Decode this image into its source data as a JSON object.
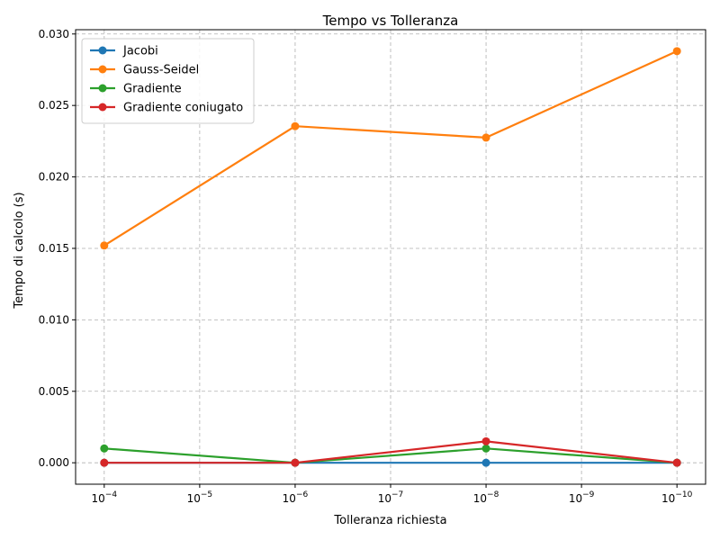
{
  "chart_data": {
    "type": "line",
    "title": "Tempo vs Tolleranza",
    "xlabel": "Tolleranza richiesta",
    "ylabel": "Tempo di calcolo (s)",
    "x_scale": "log",
    "x_reversed": true,
    "x": [
      0.0001,
      1e-06,
      1e-08,
      1e-10
    ],
    "x_ticks": [
      {
        "value": 0.0001,
        "base": "10",
        "exp": "−4"
      },
      {
        "value": 1e-05,
        "base": "10",
        "exp": "−5"
      },
      {
        "value": 1e-06,
        "base": "10",
        "exp": "−6"
      },
      {
        "value": 1e-07,
        "base": "10",
        "exp": "−7"
      },
      {
        "value": 1e-08,
        "base": "10",
        "exp": "−8"
      },
      {
        "value": 1e-09,
        "base": "10",
        "exp": "−9"
      },
      {
        "value": 1e-10,
        "base": "10",
        "exp": "−10"
      }
    ],
    "ylim": [
      -0.0015,
      0.0303
    ],
    "y_ticks": [
      {
        "value": 0.0,
        "label": "0.000"
      },
      {
        "value": 0.005,
        "label": "0.005"
      },
      {
        "value": 0.01,
        "label": "0.010"
      },
      {
        "value": 0.015,
        "label": "0.015"
      },
      {
        "value": 0.02,
        "label": "0.020"
      },
      {
        "value": 0.025,
        "label": "0.025"
      },
      {
        "value": 0.03,
        "label": "0.030"
      }
    ],
    "grid": true,
    "legend_position": "top-left",
    "series": [
      {
        "name": "Jacobi",
        "color": "#1f77b4",
        "values": [
          0.0,
          0.0,
          0.0,
          0.0
        ]
      },
      {
        "name": "Gauss-Seidel",
        "color": "#ff7f0e",
        "values": [
          0.0152,
          0.02355,
          0.02275,
          0.0288
        ]
      },
      {
        "name": "Gradiente",
        "color": "#2ca02c",
        "values": [
          0.001,
          0.0,
          0.001,
          0.0
        ]
      },
      {
        "name": "Gradiente coniugato",
        "color": "#d62728",
        "values": [
          0.0,
          0.0,
          0.0015,
          0.0
        ]
      }
    ]
  }
}
